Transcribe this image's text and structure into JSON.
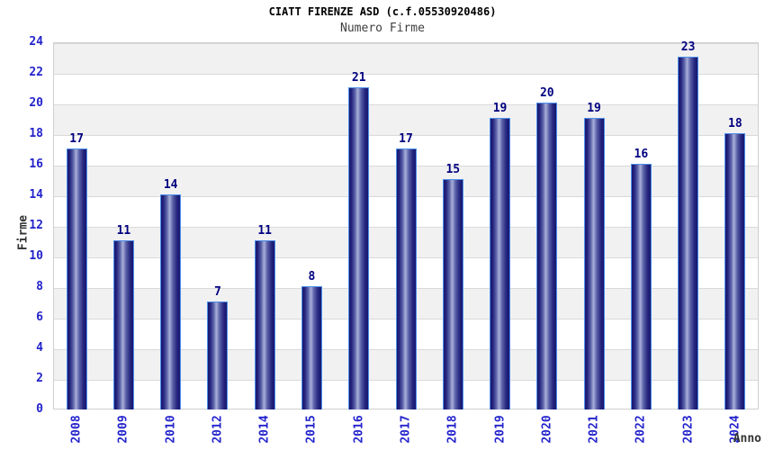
{
  "header": {
    "title": "CIATT FIRENZE ASD (c.f.05530920486)",
    "subtitle": "Numero Firme"
  },
  "chart_data": {
    "type": "bar",
    "title": "CIATT FIRENZE ASD (c.f.05530920486)",
    "subtitle": "Numero Firme",
    "categories": [
      "2008",
      "2009",
      "2010",
      "2012",
      "2014",
      "2015",
      "2016",
      "2017",
      "2018",
      "2019",
      "2020",
      "2021",
      "2022",
      "2023",
      "2024"
    ],
    "values": [
      17,
      11,
      14,
      7,
      11,
      8,
      21,
      17,
      15,
      19,
      20,
      19,
      16,
      23,
      18
    ],
    "xlabel": "Anno",
    "ylabel": "Firme",
    "ylim": [
      0,
      24
    ],
    "yticks": [
      0,
      2,
      4,
      6,
      8,
      10,
      12,
      14,
      16,
      18,
      20,
      22,
      24
    ],
    "grid": "horizontal-bands-alternating",
    "legend": "none",
    "colors": {
      "bar_edge": "#181870",
      "bar_highlight": "#a9b0d9",
      "bar_border": "#4d8fea",
      "tick_label": "#2323cc",
      "value_label": "#000080",
      "band_gray": "#f1f1f1",
      "band_white": "#ffffff",
      "gridline": "#d9d9d9",
      "title_color": "#000000",
      "subtitle_color": "#404040",
      "axis_title_color": "#333333"
    }
  }
}
